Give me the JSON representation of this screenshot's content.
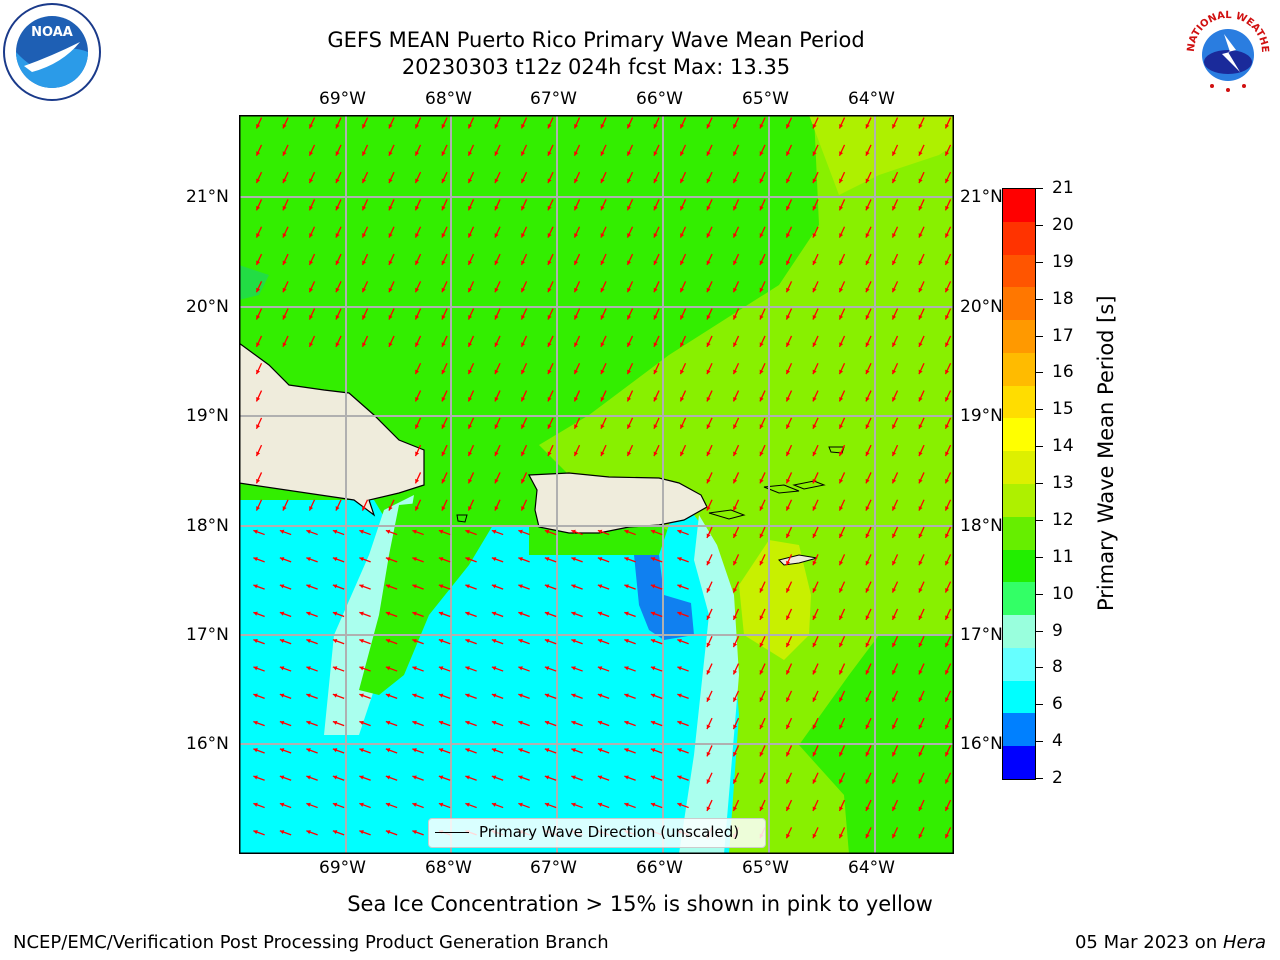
{
  "header": {
    "title": "GEFS MEAN Puerto Rico Primary Wave Mean Period",
    "subtitle": "20230303 t12z 024h fcst   Max: 13.35"
  },
  "logos": {
    "noaa_text": "NOAA",
    "nws_text": "NATIONAL WEATHER SERVICE"
  },
  "axes": {
    "lon_labels": [
      "69°W",
      "68°W",
      "67°W",
      "66°W",
      "65°W",
      "64°W"
    ],
    "lat_labels": [
      "21°N",
      "20°N",
      "19°N",
      "18°N",
      "17°N",
      "16°N"
    ]
  },
  "legend": {
    "label": "Primary Wave Direction (unscaled)"
  },
  "colorbar": {
    "label": "Primary Wave Mean Period [s]",
    "ticks": [
      "21",
      "20",
      "19",
      "18",
      "17",
      "16",
      "15",
      "14",
      "13",
      "12",
      "11",
      "10",
      "9",
      "8",
      "6",
      "4",
      "2"
    ],
    "colors": [
      "#ff0000",
      "#ff3300",
      "#ff5500",
      "#ff7700",
      "#ff9900",
      "#ffbb00",
      "#ffdd00",
      "#ffff00",
      "#ddf000",
      "#aef000",
      "#66ee00",
      "#22ee00",
      "#33ff66",
      "#99ffdd",
      "#66ffff",
      "#00ffff",
      "#0080ff",
      "#0000ff"
    ]
  },
  "map_colors": {
    "green": "#33ee00",
    "lightgreen": "#88f000",
    "yellowgreen": "#c8f000",
    "cyan": "#00ffff",
    "pale": "#aaffee",
    "blue": "#1080f0",
    "land": "#efecdc",
    "arrow": "#ff0000",
    "grid": "#b0b0b0"
  },
  "footer": {
    "note": "Sea Ice Concentration > 15% is shown in pink to yellow",
    "org": "NCEP/EMC/Verification Post Processing Product Generation Branch",
    "date": "05 Mar 2023 on ",
    "machine": "Hera"
  }
}
